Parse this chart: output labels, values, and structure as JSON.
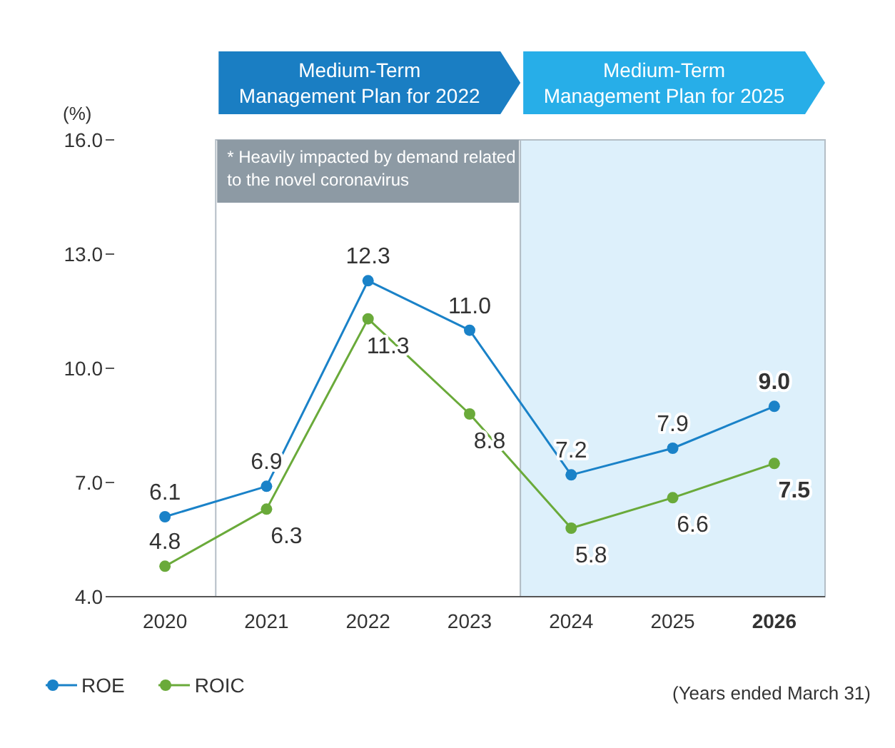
{
  "chart_data": {
    "type": "line",
    "ylabel": "(%)",
    "categories": [
      "2020",
      "2021",
      "2022",
      "2023",
      "2024",
      "2025",
      "2026"
    ],
    "series": [
      {
        "name": "ROE",
        "color": "#1a82c8",
        "values": [
          6.1,
          6.9,
          12.3,
          11.0,
          7.2,
          7.9,
          9.0
        ],
        "value_labels": [
          "6.1",
          "6.9",
          "12.3",
          "11.0",
          "7.2",
          "7.9",
          "9.0"
        ]
      },
      {
        "name": "ROIC",
        "color": "#6aaa3a",
        "values": [
          4.8,
          6.3,
          11.3,
          8.8,
          5.8,
          6.6,
          7.5
        ],
        "value_labels": [
          "4.8",
          "6.3",
          "11.3",
          "8.8",
          "5.8",
          "6.6",
          "7.5"
        ]
      }
    ],
    "ylim": [
      4,
      16
    ],
    "yticks": [
      {
        "value": 4,
        "label": "4.0"
      },
      {
        "value": 7,
        "label": "7.0"
      },
      {
        "value": 10,
        "label": "10.0"
      },
      {
        "value": 13,
        "label": "13.0"
      },
      {
        "value": 16,
        "label": "16.0"
      }
    ],
    "bands": [
      {
        "axis": "x",
        "from": "2021",
        "to": "2023",
        "label": "Medium-Term Management Plan for 2022"
      },
      {
        "axis": "x",
        "from": "2024",
        "to": "2026",
        "label": "Medium-Term Management Plan for 2025",
        "color": "#ddf0fb"
      }
    ],
    "annotations": [
      "* Heavily impacted by demand related to the novel coronavirus",
      "(Years ended March 31)"
    ],
    "marker": "circle",
    "line_style": "solid",
    "grid": false,
    "legend": "bottom left"
  }
}
